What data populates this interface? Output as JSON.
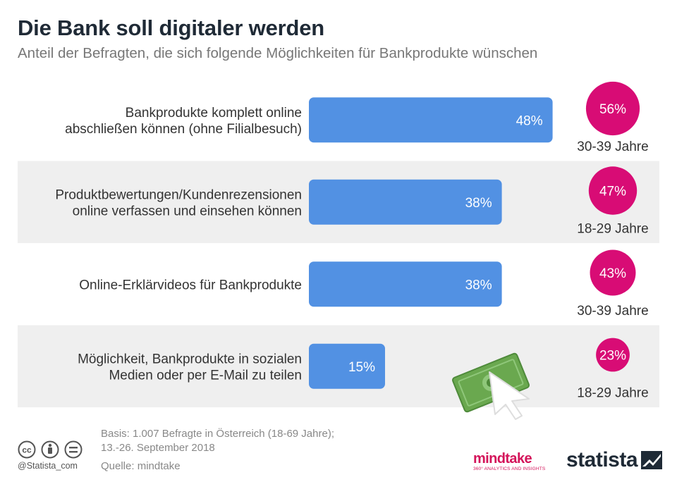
{
  "header": {
    "title": "Die Bank soll digitaler werden",
    "subtitle": "Anteil der Befragten, die sich folgende Möglichkeiten für Bankprodukte wünschen"
  },
  "chart_data": {
    "type": "bar",
    "orientation": "horizontal",
    "title": "Die Bank soll digitaler werden",
    "subtitle": "Anteil der Befragten, die sich folgende Möglichkeiten für Bankprodukte wünschen",
    "categories": [
      [
        "Bankprodukte komplett online",
        "abschließen können (ohne Filialbesuch)"
      ],
      [
        "Produktbewertungen/Kundenrezensionen",
        "online verfassen und einsehen können"
      ],
      [
        "Online-Erklärvideos für Bankprodukte"
      ],
      [
        "Möglichkeit, Bankprodukte in sozialen",
        "Medien oder per E-Mail zu teilen"
      ]
    ],
    "values": [
      48,
      38,
      38,
      15
    ],
    "value_labels": [
      "48%",
      "38%",
      "38%",
      "15%"
    ],
    "xlim": [
      0,
      100
    ],
    "top_age_group": {
      "values": [
        56,
        47,
        43,
        23
      ],
      "value_labels": [
        "56%",
        "47%",
        "43%",
        "23%"
      ],
      "age_labels": [
        "30-39 Jahre",
        "18-29 Jahre",
        "30-39 Jahre",
        "18-29 Jahre"
      ]
    },
    "colors": {
      "bar": "#5291e3",
      "circle": "#d80c75",
      "stripe": "#efefef"
    },
    "grid": false,
    "legend": "none"
  },
  "footer": {
    "basis_line1": "Basis: 1.007 Befragte in Österreich (18-69 Jahre);",
    "basis_line2": "13.-26. September 2018",
    "source": "Quelle: mindtake",
    "handle": "@Statista_com",
    "partner_logo": "mindtake",
    "partner_tagline": "360° ANALYTICS AND INSIGHTS",
    "brand_logo": "statista"
  },
  "icons": [
    "cc-icon",
    "person-icon",
    "equals-icon",
    "banknote-cursor-icon",
    "statista-logo-icon"
  ]
}
